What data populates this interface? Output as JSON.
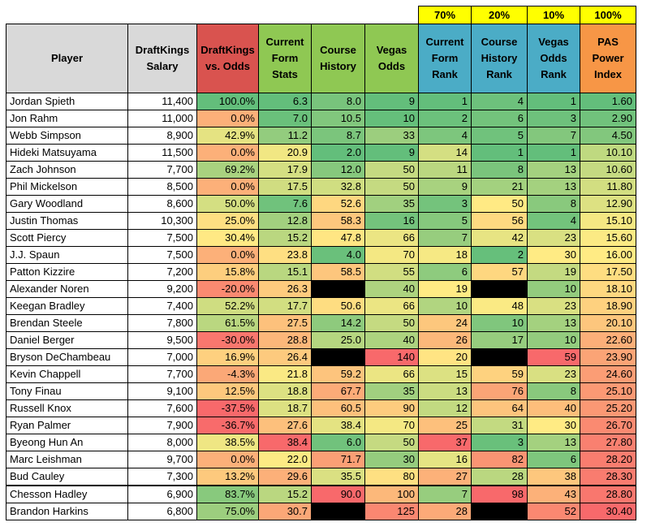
{
  "weights": [
    "70%",
    "20%",
    "10%",
    "100%"
  ],
  "headers": [
    {
      "label": "Player",
      "bg": "#d9d9d9"
    },
    {
      "label": "DraftKings Salary",
      "bg": "#d9d9d9"
    },
    {
      "label": "DraftKings vs. Odds",
      "bg": "#d9534f"
    },
    {
      "label": "Current Form Stats",
      "bg": "#8fc853"
    },
    {
      "label": "Course History",
      "bg": "#8fc853"
    },
    {
      "label": "Vegas Odds",
      "bg": "#8fc853"
    },
    {
      "label": "Current Form Rank",
      "bg": "#4bacc6"
    },
    {
      "label": "Course History Rank",
      "bg": "#4bacc6"
    },
    {
      "label": "Vegas Odds Rank",
      "bg": "#4bacc6"
    },
    {
      "label": "PAS Power Index",
      "bg": "#f79646"
    }
  ],
  "colors": {
    "green": "#63be7b",
    "yellow": "#ffeb84",
    "red": "#f8696b",
    "black": "#000000"
  },
  "rows": [
    {
      "player": "Jordan Spieth",
      "salary": "11,400",
      "dk_vs_odds": "100.0%",
      "form": "6.3",
      "history": "8.0",
      "vegas": "9",
      "form_rank": "1",
      "history_rank": "4",
      "vegas_rank": "1",
      "pas": "1.60"
    },
    {
      "player": "Jon Rahm",
      "salary": "11,000",
      "dk_vs_odds": "0.0%",
      "form": "7.0",
      "history": "10.5",
      "vegas": "10",
      "form_rank": "2",
      "history_rank": "6",
      "vegas_rank": "3",
      "pas": "2.90"
    },
    {
      "player": "Webb Simpson",
      "salary": "8,900",
      "dk_vs_odds": "42.9%",
      "form": "11.2",
      "history": "8.7",
      "vegas": "33",
      "form_rank": "4",
      "history_rank": "5",
      "vegas_rank": "7",
      "pas": "4.50"
    },
    {
      "player": "Hideki Matsuyama",
      "salary": "11,500",
      "dk_vs_odds": "0.0%",
      "form": "20.9",
      "history": "2.0",
      "vegas": "9",
      "form_rank": "14",
      "history_rank": "1",
      "vegas_rank": "1",
      "pas": "10.10"
    },
    {
      "player": "Zach Johnson",
      "salary": "7,700",
      "dk_vs_odds": "69.2%",
      "form": "17.9",
      "history": "12.0",
      "vegas": "50",
      "form_rank": "11",
      "history_rank": "8",
      "vegas_rank": "13",
      "pas": "10.60"
    },
    {
      "player": "Phil Mickelson",
      "salary": "8,500",
      "dk_vs_odds": "0.0%",
      "form": "17.5",
      "history": "32.8",
      "vegas": "50",
      "form_rank": "9",
      "history_rank": "21",
      "vegas_rank": "13",
      "pas": "11.80"
    },
    {
      "player": "Gary Woodland",
      "salary": "8,600",
      "dk_vs_odds": "50.0%",
      "form": "7.6",
      "history": "52.6",
      "vegas": "35",
      "form_rank": "3",
      "history_rank": "50",
      "vegas_rank": "8",
      "pas": "12.90"
    },
    {
      "player": "Justin Thomas",
      "salary": "10,300",
      "dk_vs_odds": "25.0%",
      "form": "12.8",
      "history": "58.3",
      "vegas": "16",
      "form_rank": "5",
      "history_rank": "56",
      "vegas_rank": "4",
      "pas": "15.10"
    },
    {
      "player": "Scott Piercy",
      "salary": "7,500",
      "dk_vs_odds": "30.4%",
      "form": "15.2",
      "history": "47.8",
      "vegas": "66",
      "form_rank": "7",
      "history_rank": "42",
      "vegas_rank": "23",
      "pas": "15.60"
    },
    {
      "player": "J.J. Spaun",
      "salary": "7,500",
      "dk_vs_odds": "0.0%",
      "form": "23.8",
      "history": "4.0",
      "vegas": "70",
      "form_rank": "18",
      "history_rank": "2",
      "vegas_rank": "30",
      "pas": "16.00"
    },
    {
      "player": "Patton Kizzire",
      "salary": "7,200",
      "dk_vs_odds": "15.8%",
      "form": "15.1",
      "history": "58.5",
      "vegas": "55",
      "form_rank": "6",
      "history_rank": "57",
      "vegas_rank": "19",
      "pas": "17.50"
    },
    {
      "player": "Alexander Noren",
      "salary": "9,200",
      "dk_vs_odds": "-20.0%",
      "form": "26.3",
      "history": "",
      "vegas": "40",
      "form_rank": "19",
      "history_rank": "",
      "vegas_rank": "10",
      "pas": "18.10"
    },
    {
      "player": "Keegan Bradley",
      "salary": "7,400",
      "dk_vs_odds": "52.2%",
      "form": "17.7",
      "history": "50.6",
      "vegas": "66",
      "form_rank": "10",
      "history_rank": "48",
      "vegas_rank": "23",
      "pas": "18.90"
    },
    {
      "player": "Brendan Steele",
      "salary": "7,800",
      "dk_vs_odds": "61.5%",
      "form": "27.5",
      "history": "14.2",
      "vegas": "50",
      "form_rank": "24",
      "history_rank": "10",
      "vegas_rank": "13",
      "pas": "20.10"
    },
    {
      "player": "Daniel Berger",
      "salary": "9,500",
      "dk_vs_odds": "-30.0%",
      "form": "28.8",
      "history": "25.0",
      "vegas": "40",
      "form_rank": "26",
      "history_rank": "17",
      "vegas_rank": "10",
      "pas": "22.60"
    },
    {
      "player": "Bryson DeChambeau",
      "salary": "7,000",
      "dk_vs_odds": "16.9%",
      "form": "26.4",
      "history": "",
      "vegas": "140",
      "form_rank": "20",
      "history_rank": "",
      "vegas_rank": "59",
      "pas": "23.90"
    },
    {
      "player": "Kevin Chappell",
      "salary": "7,700",
      "dk_vs_odds": "-4.3%",
      "form": "21.8",
      "history": "59.2",
      "vegas": "66",
      "form_rank": "15",
      "history_rank": "59",
      "vegas_rank": "23",
      "pas": "24.60"
    },
    {
      "player": "Tony Finau",
      "salary": "9,100",
      "dk_vs_odds": "12.5%",
      "form": "18.8",
      "history": "67.7",
      "vegas": "35",
      "form_rank": "13",
      "history_rank": "76",
      "vegas_rank": "8",
      "pas": "25.10"
    },
    {
      "player": "Russell Knox",
      "salary": "7,600",
      "dk_vs_odds": "-37.5%",
      "form": "18.7",
      "history": "60.5",
      "vegas": "90",
      "form_rank": "12",
      "history_rank": "64",
      "vegas_rank": "40",
      "pas": "25.20"
    },
    {
      "player": "Ryan Palmer",
      "salary": "7,900",
      "dk_vs_odds": "-36.7%",
      "form": "27.6",
      "history": "38.4",
      "vegas": "70",
      "form_rank": "25",
      "history_rank": "31",
      "vegas_rank": "30",
      "pas": "26.70"
    },
    {
      "player": "Byeong Hun An",
      "salary": "8,000",
      "dk_vs_odds": "38.5%",
      "form": "38.4",
      "history": "6.0",
      "vegas": "50",
      "form_rank": "37",
      "history_rank": "3",
      "vegas_rank": "13",
      "pas": "27.80"
    },
    {
      "player": "Marc Leishman",
      "salary": "9,700",
      "dk_vs_odds": "0.0%",
      "form": "22.0",
      "history": "71.7",
      "vegas": "30",
      "form_rank": "16",
      "history_rank": "82",
      "vegas_rank": "6",
      "pas": "28.20"
    },
    {
      "player": "Bud Cauley",
      "salary": "7,300",
      "dk_vs_odds": "13.2%",
      "form": "29.6",
      "history": "35.5",
      "vegas": "80",
      "form_rank": "27",
      "history_rank": "28",
      "vegas_rank": "38",
      "pas": "28.30"
    },
    {
      "player": "Chesson Hadley",
      "salary": "6,900",
      "dk_vs_odds": "83.7%",
      "form": "15.2",
      "history": "90.0",
      "vegas": "100",
      "form_rank": "7",
      "history_rank": "98",
      "vegas_rank": "43",
      "pas": "28.80"
    },
    {
      "player": "Brandon Harkins",
      "salary": "6,800",
      "dk_vs_odds": "75.0%",
      "form": "30.7",
      "history": "",
      "vegas": "125",
      "form_rank": "28",
      "history_rank": "",
      "vegas_rank": "52",
      "pas": "30.40"
    }
  ]
}
